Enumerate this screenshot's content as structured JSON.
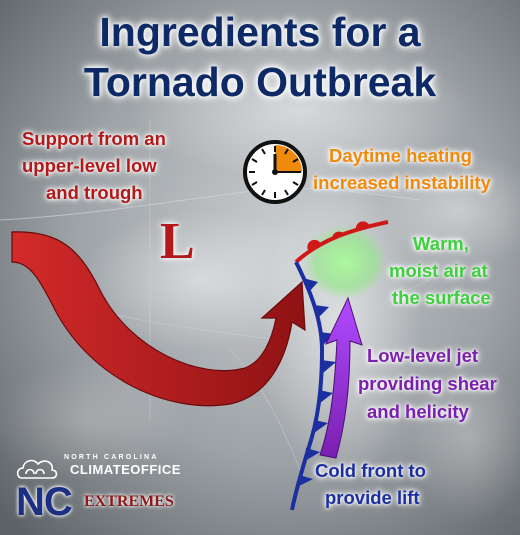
{
  "title": {
    "line1": "Ingredients for a",
    "line2": "Tornado Outbreak"
  },
  "low_symbol": "L",
  "labels": {
    "upper_low": [
      "Support from an",
      "upper-level low",
      "and trough"
    ],
    "daytime_heating": [
      "Daytime heating",
      "increased instability"
    ],
    "warm_moist": [
      "Warm,",
      "moist air at",
      "the surface"
    ],
    "low_level_jet": [
      "Low-level jet",
      "providing shear",
      "and helicity"
    ],
    "cold_front": [
      "Cold front to",
      "provide lift"
    ]
  },
  "logo": {
    "north_carolina": "NORTH CAROLINA",
    "climate_office": "CLIMATEOFFICE",
    "nc": "NC",
    "extremes": "EXTREMES"
  },
  "colors": {
    "title": "#0d2a66",
    "upper_low": "#b3191b",
    "daytime_heating": "#f08a0c",
    "warm_moist": "#3fcf3f",
    "low_level_jet": "#7a1fb0",
    "cold_front": "#1b2fa0",
    "warm_front": "#d01818",
    "arrow_red": "#b3191b",
    "arrow_purple": "#9a32e6"
  },
  "icons": [
    "clock-icon",
    "cloud-icon"
  ]
}
